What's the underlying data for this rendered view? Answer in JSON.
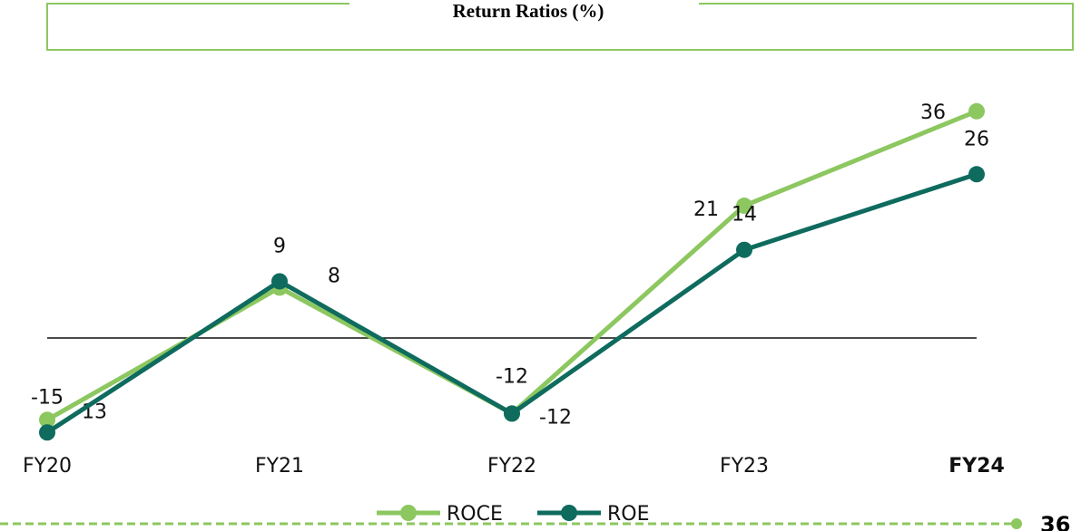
{
  "chart_data": {
    "type": "line",
    "title": "Return Ratios  (%)",
    "categories": [
      "FY20",
      "FY21",
      "FY22",
      "FY23",
      "FY24"
    ],
    "series": [
      {
        "name": "ROCE",
        "color": "#8cc760",
        "values": [
          -13,
          8,
          -12,
          21,
          36
        ]
      },
      {
        "name": "ROE",
        "color": "#0e6b5e",
        "values": [
          -15,
          9,
          -12,
          14,
          26
        ]
      }
    ],
    "ylim": [
      -20,
      40
    ],
    "legend": "bottom"
  },
  "footer": {
    "page_number": "36"
  }
}
